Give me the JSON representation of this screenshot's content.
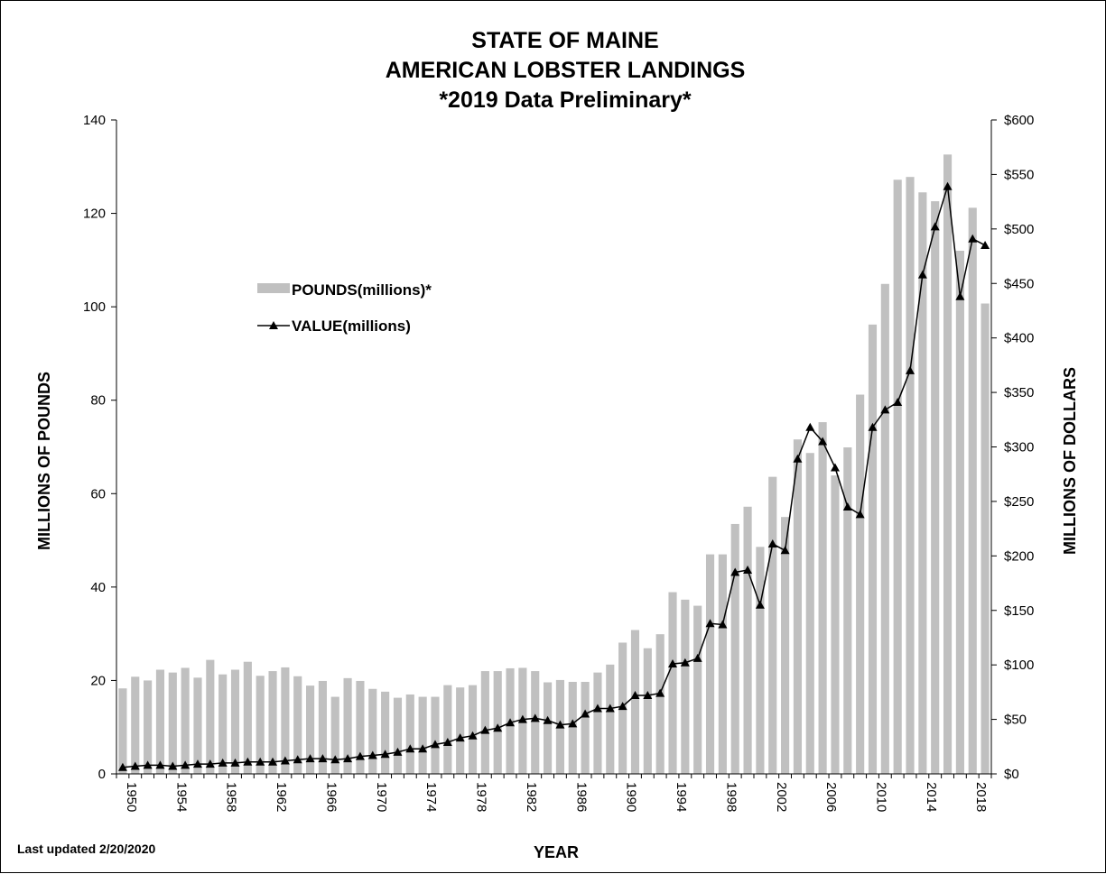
{
  "chart_data": {
    "type": "bar",
    "title": [
      "STATE OF MAINE",
      "AMERICAN LOBSTER LANDINGS",
      "*2019 Data Preliminary*"
    ],
    "xlabel": "YEAR",
    "ylabel_left": "MILLIONS OF POUNDS",
    "ylabel_right": "MILLIONS OF DOLLARS",
    "ylim_left": [
      0,
      140
    ],
    "ylim_right": [
      0,
      600
    ],
    "left_ticks": [
      "0",
      "20",
      "40",
      "60",
      "80",
      "100",
      "120",
      "140"
    ],
    "right_ticks": [
      "$0",
      "$50",
      "$100",
      "$150",
      "$200",
      "$250",
      "$300",
      "$350",
      "$400",
      "$450",
      "$500",
      "$550",
      "$600"
    ],
    "legend_position": "upper-left",
    "grid": false,
    "x": [
      1950,
      1951,
      1952,
      1953,
      1954,
      1955,
      1956,
      1957,
      1958,
      1959,
      1960,
      1961,
      1962,
      1963,
      1964,
      1965,
      1966,
      1967,
      1968,
      1969,
      1970,
      1971,
      1972,
      1973,
      1974,
      1975,
      1976,
      1977,
      1978,
      1979,
      1980,
      1981,
      1982,
      1983,
      1984,
      1985,
      1986,
      1987,
      1988,
      1989,
      1990,
      1991,
      1992,
      1993,
      1994,
      1995,
      1996,
      1997,
      1998,
      1999,
      2000,
      2001,
      2002,
      2003,
      2004,
      2005,
      2006,
      2007,
      2008,
      2009,
      2010,
      2011,
      2012,
      2013,
      2014,
      2015,
      2016,
      2017,
      2018,
      2019
    ],
    "x_tick_labels": [
      "1950",
      "1954",
      "1958",
      "1962",
      "1966",
      "1970",
      "1974",
      "1978",
      "1982",
      "1986",
      "1990",
      "1994",
      "1998",
      "2002",
      "2006",
      "2010",
      "2014",
      "2018"
    ],
    "series": [
      {
        "name": "POUNDS(millions)*",
        "kind": "bar",
        "axis": "left",
        "color": "#c0c0c0",
        "values": [
          18.3,
          20.8,
          20.0,
          22.3,
          21.7,
          22.7,
          20.6,
          24.4,
          21.3,
          22.3,
          24.0,
          21.0,
          22.0,
          22.8,
          20.9,
          18.9,
          19.9,
          16.5,
          20.5,
          19.9,
          18.2,
          17.6,
          16.3,
          17.0,
          16.5,
          16.5,
          19.0,
          18.5,
          19.0,
          22.0,
          22.0,
          22.6,
          22.7,
          22.0,
          19.6,
          20.1,
          19.7,
          19.7,
          21.7,
          23.4,
          28.1,
          30.8,
          26.9,
          29.9,
          38.9,
          37.3,
          36.0,
          47.0,
          47.0,
          53.5,
          57.2,
          48.6,
          63.6,
          55.0,
          71.6,
          68.7,
          75.3,
          63.9,
          69.9,
          81.2,
          96.2,
          104.9,
          127.2,
          127.8,
          124.5,
          122.6,
          132.6,
          112.0,
          121.2,
          100.7
        ]
      },
      {
        "name": "VALUE(millions)",
        "kind": "line",
        "axis": "right",
        "color": "#000000",
        "marker": "triangle",
        "values": [
          6,
          7,
          8,
          8,
          7,
          8,
          9,
          9,
          10,
          10,
          11,
          11,
          11,
          12,
          13,
          14,
          14,
          13,
          14,
          16,
          17,
          18,
          20,
          23,
          23,
          27,
          29,
          33,
          35,
          40,
          42,
          47,
          50,
          51,
          49,
          45,
          46,
          55,
          60,
          60,
          62,
          72,
          72,
          74,
          101,
          102,
          106,
          138,
          137,
          185,
          187,
          155,
          211,
          205,
          289,
          318,
          305,
          281,
          245,
          238,
          318,
          334,
          341,
          370,
          458,
          502,
          539,
          438,
          491,
          485
        ]
      }
    ],
    "annotation": "Last updated 2/20/2020"
  }
}
